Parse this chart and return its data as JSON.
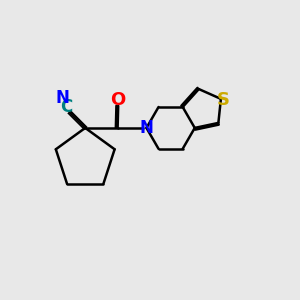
{
  "background_color": "#e8e8e8",
  "bond_color": "#000000",
  "bond_width": 1.8,
  "atom_colors": {
    "N": "#0000ff",
    "O": "#ff0000",
    "S": "#ccaa00",
    "C_cyan": "#008080",
    "CN_label": "#0000ff"
  },
  "font_size_atoms": 12,
  "figure_size": [
    3.0,
    3.0
  ],
  "dpi": 100
}
